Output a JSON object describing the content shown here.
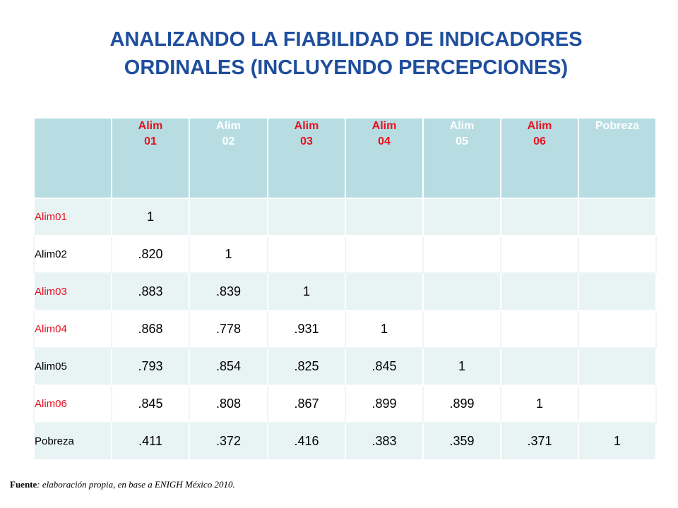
{
  "title": {
    "line1": "ANALIZANDO LA FIABILIDAD DE INDICADORES",
    "line2": "ORDINALES (INCLUYENDO PERCEPCIONES)"
  },
  "table": {
    "columns": [
      {
        "line1": "Alim",
        "line2": "01",
        "color": "red"
      },
      {
        "line1": "Alim",
        "line2": "02",
        "color": "white"
      },
      {
        "line1": "Alim",
        "line2": "03",
        "color": "red"
      },
      {
        "line1": "Alim",
        "line2": "04",
        "color": "red"
      },
      {
        "line1": "Alim",
        "line2": "05",
        "color": "white"
      },
      {
        "line1": "Alim",
        "line2": "06",
        "color": "red"
      },
      {
        "line1": "Pobreza",
        "line2": "",
        "color": "white"
      }
    ],
    "rows": [
      {
        "label": "Alim01",
        "color": "red",
        "values": [
          "1",
          "",
          "",
          "",
          "",
          "",
          ""
        ]
      },
      {
        "label": "Alim02",
        "color": "black",
        "values": [
          ".820",
          "1",
          "",
          "",
          "",
          "",
          ""
        ]
      },
      {
        "label": "Alim03",
        "color": "red",
        "values": [
          ".883",
          ".839",
          "1",
          "",
          "",
          "",
          ""
        ]
      },
      {
        "label": "Alim04",
        "color": "red",
        "values": [
          ".868",
          ".778",
          ".931",
          "1",
          "",
          "",
          ""
        ]
      },
      {
        "label": "Alim05",
        "color": "black",
        "values": [
          ".793",
          ".854",
          ".825",
          ".845",
          "1",
          "",
          ""
        ]
      },
      {
        "label": "Alim06",
        "color": "red",
        "values": [
          ".845",
          ".808",
          ".867",
          ".899",
          ".899",
          "1",
          ""
        ]
      },
      {
        "label": "Pobreza",
        "color": "black",
        "values": [
          ".411",
          ".372",
          ".416",
          ".383",
          ".359",
          ".371",
          "1"
        ]
      }
    ]
  },
  "source": {
    "label": "Fuente",
    "text": ": elaboración propia, en base a ENIGH México 2010."
  },
  "colors": {
    "title": "#1f4e9c",
    "header_bg": "#b7dde2",
    "red_label": "#e8101e"
  }
}
